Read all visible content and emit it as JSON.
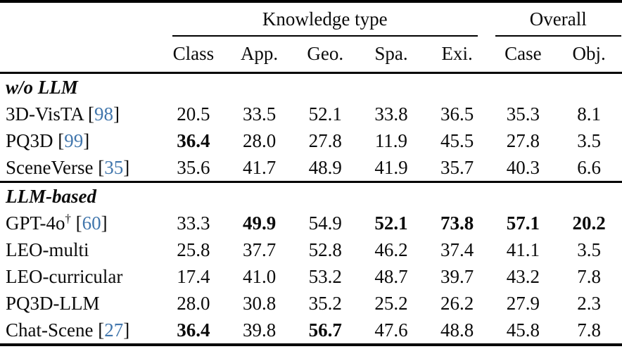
{
  "table": {
    "citation_color": "#4176ac",
    "group_headers": [
      {
        "label": "Knowledge type",
        "span": 5
      },
      {
        "label": "Overall",
        "span": 2
      }
    ],
    "columns": [
      "Class",
      "App.",
      "Geo.",
      "Spa.",
      "Exi.",
      "Case",
      "Obj."
    ],
    "sections": [
      {
        "label": "w/o LLM",
        "rows": [
          {
            "name": "3D-VisTA",
            "sup": "",
            "citation": "98",
            "values": [
              "20.5",
              "33.5",
              "52.1",
              "33.8",
              "36.5",
              "35.3",
              "8.1"
            ],
            "bold": [
              false,
              false,
              false,
              false,
              false,
              false,
              false
            ]
          },
          {
            "name": "PQ3D",
            "sup": "",
            "citation": "99",
            "values": [
              "36.4",
              "28.0",
              "27.8",
              "11.9",
              "45.5",
              "27.8",
              "3.5"
            ],
            "bold": [
              true,
              false,
              false,
              false,
              false,
              false,
              false
            ]
          },
          {
            "name": "SceneVerse",
            "sup": "",
            "citation": "35",
            "values": [
              "35.6",
              "41.7",
              "48.9",
              "41.9",
              "35.7",
              "40.3",
              "6.6"
            ],
            "bold": [
              false,
              false,
              false,
              false,
              false,
              false,
              false
            ]
          }
        ]
      },
      {
        "label": "LLM-based",
        "rows": [
          {
            "name": "GPT-4o",
            "sup": "†",
            "citation": "60",
            "values": [
              "33.3",
              "49.9",
              "54.9",
              "52.1",
              "73.8",
              "57.1",
              "20.2"
            ],
            "bold": [
              false,
              true,
              false,
              true,
              true,
              true,
              true
            ]
          },
          {
            "name": "LEO-multi",
            "sup": "",
            "citation": "",
            "values": [
              "25.8",
              "37.7",
              "52.8",
              "46.2",
              "37.4",
              "41.1",
              "3.5"
            ],
            "bold": [
              false,
              false,
              false,
              false,
              false,
              false,
              false
            ]
          },
          {
            "name": "LEO-curricular",
            "sup": "",
            "citation": "",
            "values": [
              "17.4",
              "41.0",
              "53.2",
              "48.7",
              "39.7",
              "43.2",
              "7.8"
            ],
            "bold": [
              false,
              false,
              false,
              false,
              false,
              false,
              false
            ]
          },
          {
            "name": "PQ3D-LLM",
            "sup": "",
            "citation": "",
            "values": [
              "28.0",
              "30.8",
              "35.2",
              "25.2",
              "26.2",
              "27.9",
              "2.3"
            ],
            "bold": [
              false,
              false,
              false,
              false,
              false,
              false,
              false
            ]
          },
          {
            "name": "Chat-Scene",
            "sup": "",
            "citation": "27",
            "values": [
              "36.4",
              "39.8",
              "56.7",
              "47.6",
              "48.8",
              "45.8",
              "7.8"
            ],
            "bold": [
              true,
              false,
              true,
              false,
              false,
              false,
              false
            ]
          }
        ]
      }
    ]
  }
}
